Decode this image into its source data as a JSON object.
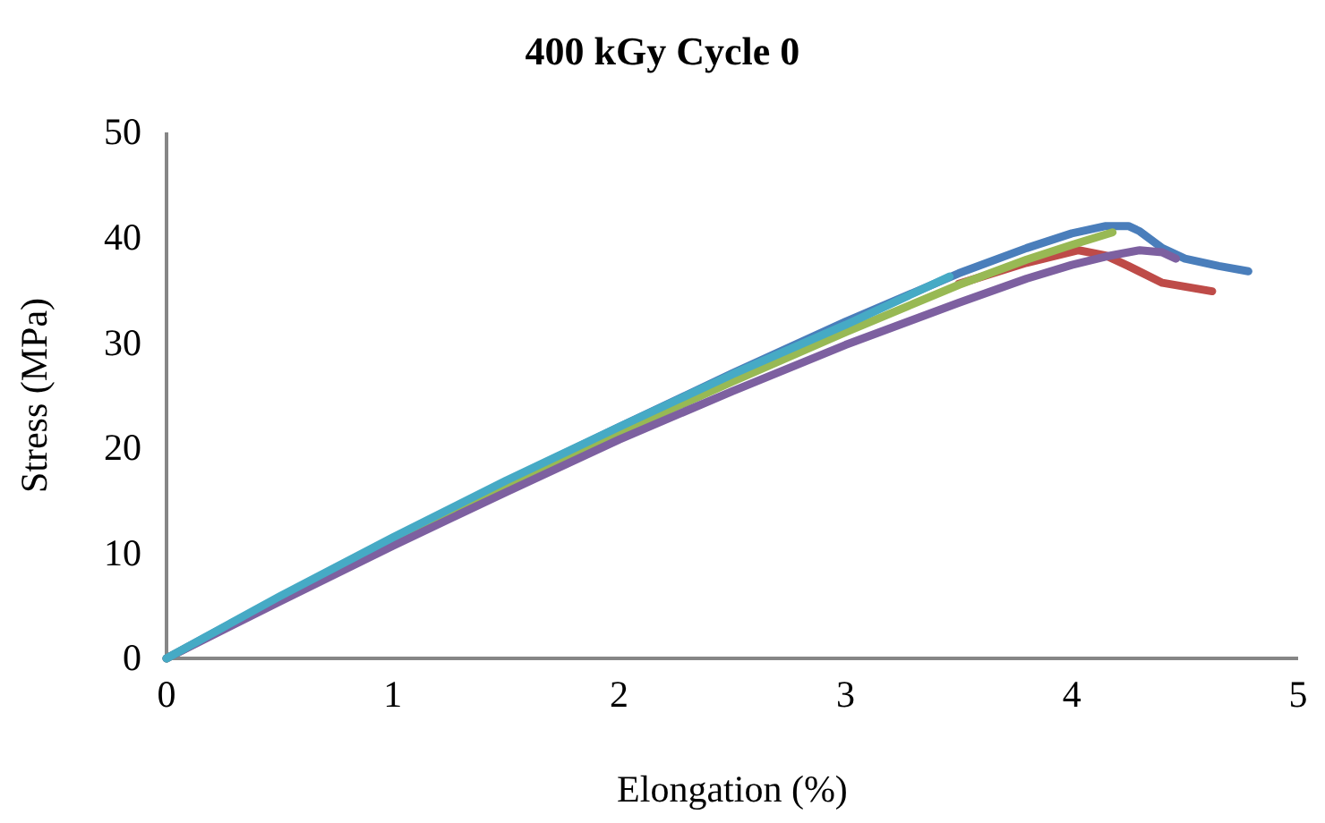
{
  "chart_data": {
    "type": "line",
    "title": "400 kGy Cycle 0",
    "xlabel": "Elongation (%)",
    "ylabel": "Stress (MPa)",
    "xlim": [
      0,
      5
    ],
    "xticks": [
      0,
      1,
      2,
      3,
      4,
      5
    ],
    "ylim": [
      0,
      50
    ],
    "yticks": [
      0,
      10,
      20,
      30,
      40,
      50
    ],
    "grid": false,
    "marker": "none",
    "line_style": "solid",
    "series": [
      {
        "color": "#4a7ebb",
        "x": [
          0,
          0.5,
          1,
          1.5,
          2,
          2.5,
          3,
          3.5,
          3.8,
          4,
          4.15,
          4.25,
          4.3,
          4.4,
          4.5,
          4.65,
          4.78
        ],
        "values": [
          0,
          5.8,
          11.4,
          16.8,
          22,
          27.1,
          32,
          36.6,
          39,
          40.4,
          41.1,
          41.1,
          40.6,
          39,
          38,
          37.3,
          36.8
        ]
      },
      {
        "color": "#be4b48",
        "x": [
          3.5,
          3.8,
          4.03,
          4.15,
          4.25,
          4.4,
          4.62
        ],
        "values": [
          35.6,
          37.6,
          38.8,
          38.3,
          37.3,
          35.7,
          34.9
        ]
      },
      {
        "color": "#98b954",
        "x": [
          0,
          0.5,
          1,
          1.5,
          2,
          2.5,
          3,
          3.5,
          3.8,
          4,
          4.18
        ],
        "values": [
          0,
          5.6,
          11.1,
          16.4,
          21.5,
          26.3,
          31,
          35.5,
          37.9,
          39.3,
          40.5
        ]
      },
      {
        "color": "#7d60a0",
        "x": [
          0,
          0.5,
          1,
          1.5,
          2,
          2.5,
          3,
          3.5,
          3.8,
          4,
          4.15,
          4.3,
          4.4,
          4.46
        ],
        "values": [
          0,
          5.4,
          10.7,
          15.8,
          20.8,
          25.4,
          29.8,
          33.8,
          36.1,
          37.4,
          38.2,
          38.8,
          38.6,
          38
        ]
      },
      {
        "color": "#46aac5",
        "x": [
          0,
          0.5,
          1,
          1.5,
          2,
          2.5,
          3,
          3.46
        ],
        "values": [
          0,
          5.9,
          11.5,
          16.9,
          22,
          27,
          31.7,
          36.3
        ]
      }
    ]
  }
}
